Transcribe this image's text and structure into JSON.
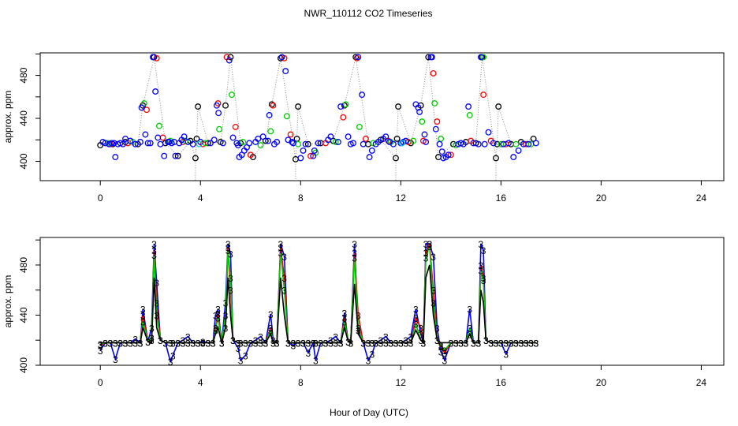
{
  "figure_title": "NWR_110112  CO2 Timeseries",
  "shared_xlabel": "Hour of Day (UTC)",
  "colors": {
    "black": "#000000",
    "red": "#ff0000",
    "green": "#00cd00",
    "blue": "#0000ff",
    "cyan": "#00cccc",
    "dotted": "#888888"
  },
  "chart_data": [
    {
      "type": "scatter",
      "title": "",
      "xlabel": "",
      "ylabel": "approx. ppm",
      "xlim": [
        -2.4,
        24.9
      ],
      "ylim": [
        382,
        501
      ],
      "xticks": [
        0,
        4,
        8,
        12,
        16,
        20,
        24
      ],
      "xtick_labels": [
        "0",
        "4",
        "8",
        "12",
        "16",
        "20",
        "24"
      ],
      "yticks": [
        400,
        440,
        480
      ],
      "ytick_labels": [
        "400",
        "440",
        "480"
      ],
      "marker": "open-circle",
      "grid": false,
      "series": [
        {
          "name": "black",
          "color": "#000000",
          "x": [
            0,
            0.5,
            1.0,
            1.5,
            1.7,
            2.15,
            2.6,
            3.1,
            3.6,
            3.8,
            3.85,
            3.9,
            4.3,
            4.8,
            5.0,
            5.2,
            5.6,
            6.1,
            6.6,
            6.85,
            7.2,
            7.8,
            7.85,
            7.9,
            8.3,
            8.8,
            9.3,
            9.75,
            10.2,
            10.7,
            11.2,
            11.8,
            11.85,
            11.9,
            12.4,
            12.8,
            13.1,
            13.5,
            14.1,
            14.6,
            15.0,
            15.25,
            15.8,
            15.85,
            15.9,
            16.4,
            16.8,
            17.3
          ],
          "y": [
            415,
            416,
            418,
            416,
            452,
            497,
            417,
            405,
            419,
            403,
            421,
            451,
            417,
            418,
            452,
            497,
            417,
            404,
            419,
            453,
            496,
            402,
            421,
            451,
            416,
            417,
            419,
            452,
            497,
            416,
            420,
            403,
            421,
            451,
            417,
            452,
            497,
            404,
            416,
            418,
            417,
            497,
            403,
            416,
            451,
            416,
            418,
            421
          ]
        },
        {
          "name": "red",
          "color": "#ff0000",
          "x": [
            0.4,
            1.1,
            1.85,
            2.25,
            2.5,
            3.3,
            4.1,
            4.7,
            5.05,
            5.4,
            6.0,
            6.9,
            7.35,
            7.6,
            8.4,
            9.0,
            9.7,
            10.25,
            10.6,
            11.5,
            12.3,
            12.9,
            13.3,
            13.45,
            14.0,
            14.8,
            15.3,
            15.6,
            16.2,
            17.0
          ],
          "y": [
            416,
            417,
            448,
            496,
            422,
            418,
            416,
            454,
            497,
            432,
            406,
            452,
            496,
            425,
            405,
            417,
            441,
            496,
            421,
            419,
            418,
            419,
            482,
            437,
            406,
            419,
            462,
            419,
            416,
            416
          ]
        },
        {
          "name": "green",
          "color": "#00cd00",
          "x": [
            0.3,
            1.3,
            1.75,
            2.35,
            2.8,
            3.4,
            4.2,
            4.75,
            5.25,
            5.7,
            6.4,
            6.8,
            7.45,
            7.9,
            8.6,
            9.4,
            9.8,
            10.35,
            10.9,
            11.6,
            12.5,
            12.85,
            13.35,
            13.6,
            14.2,
            14.75,
            15.3,
            16.0,
            16.6,
            17.2
          ],
          "y": [
            417,
            418,
            454,
            433,
            419,
            419,
            417,
            430,
            462,
            418,
            415,
            428,
            442,
            416,
            408,
            418,
            453,
            432,
            417,
            418,
            419,
            437,
            454,
            421,
            415,
            443,
            497,
            416,
            416,
            416
          ]
        },
        {
          "name": "blue",
          "color": "#0000ff",
          "x": [
            0.1,
            0.2,
            0.35,
            0.45,
            0.55,
            0.6,
            0.7,
            0.8,
            0.9,
            1.0,
            1.2,
            1.4,
            1.6,
            1.65,
            1.8,
            1.9,
            2.0,
            2.1,
            2.2,
            2.3,
            2.4,
            2.55,
            2.7,
            2.75,
            2.85,
            2.95,
            3.0,
            3.15,
            3.25,
            3.35,
            3.5,
            3.7,
            4.0,
            4.4,
            4.55,
            4.65,
            4.72,
            4.9,
            5.15,
            5.3,
            5.45,
            5.5,
            5.55,
            5.65,
            5.75,
            5.85,
            5.95,
            6.2,
            6.3,
            6.5,
            6.7,
            6.75,
            6.95,
            7.05,
            7.25,
            7.4,
            7.5,
            7.65,
            7.7,
            8.0,
            8.1,
            8.2,
            8.5,
            8.55,
            8.7,
            9.1,
            9.2,
            9.5,
            9.6,
            9.9,
            10.0,
            10.1,
            10.3,
            10.45,
            10.5,
            10.75,
            10.85,
            11.0,
            11.1,
            11.3,
            11.4,
            11.55,
            11.7,
            12.0,
            12.1,
            12.2,
            12.6,
            12.7,
            12.75,
            12.95,
            13.0,
            13.2,
            13.25,
            13.4,
            13.55,
            13.65,
            13.7,
            13.8,
            13.9,
            14.3,
            14.4,
            14.5,
            14.7,
            14.9,
            15.1,
            15.2,
            15.35,
            15.5,
            15.7,
            16.1,
            16.3,
            16.5,
            16.7,
            16.9,
            17.1,
            17.4
          ],
          "y": [
            418,
            417,
            416,
            417,
            417,
            404,
            416,
            417,
            416,
            421,
            419,
            416,
            418,
            450,
            425,
            417,
            417,
            497,
            465,
            422,
            416,
            405,
            418,
            418,
            417,
            418,
            405,
            417,
            420,
            423,
            418,
            416,
            418,
            417,
            420,
            452,
            445,
            417,
            494,
            422,
            417,
            415,
            404,
            406,
            410,
            413,
            417,
            418,
            421,
            423,
            419,
            443,
            416,
            418,
            497,
            484,
            420,
            418,
            417,
            403,
            410,
            416,
            405,
            410,
            417,
            420,
            423,
            418,
            451,
            423,
            416,
            417,
            497,
            462,
            416,
            404,
            410,
            416,
            418,
            421,
            423,
            418,
            416,
            417,
            418,
            419,
            453,
            450,
            446,
            425,
            418,
            497,
            497,
            430,
            416,
            409,
            403,
            404,
            406,
            416,
            417,
            416,
            451,
            417,
            416,
            497,
            416,
            427,
            417,
            416,
            417,
            404,
            410,
            416,
            416,
            417
          ]
        },
        {
          "name": "cyan",
          "color": "#00cccc",
          "x": [
            3.95,
            12.05
          ],
          "y": [
            416,
            417
          ]
        }
      ]
    },
    {
      "type": "line",
      "title": "",
      "xlabel": "Hour of Day (UTC)",
      "ylabel": "approx. ppm",
      "xlim": [
        -2.4,
        24.9
      ],
      "ylim": [
        400,
        502
      ],
      "xticks": [
        0,
        4,
        8,
        12,
        16,
        20,
        24
      ],
      "xtick_labels": [
        "0",
        "4",
        "8",
        "12",
        "16",
        "20",
        "24"
      ],
      "yticks": [
        400,
        440,
        480
      ],
      "ytick_labels": [
        "400",
        "440",
        "480"
      ],
      "point_label": "3",
      "grid": false,
      "x": [
        0,
        0.2,
        0.4,
        0.6,
        0.8,
        1.0,
        1.2,
        1.4,
        1.6,
        1.7,
        1.9,
        2.05,
        2.15,
        2.25,
        2.4,
        2.6,
        2.8,
        2.9,
        3.1,
        3.3,
        3.5,
        3.7,
        3.9,
        4.1,
        4.3,
        4.5,
        4.6,
        4.7,
        4.85,
        5.0,
        5.1,
        5.2,
        5.3,
        5.5,
        5.6,
        5.8,
        6.0,
        6.2,
        6.4,
        6.6,
        6.8,
        6.9,
        7.05,
        7.2,
        7.35,
        7.5,
        7.7,
        7.9,
        8.1,
        8.3,
        8.5,
        8.6,
        8.8,
        9.0,
        9.2,
        9.4,
        9.6,
        9.75,
        9.9,
        10.0,
        10.15,
        10.3,
        10.5,
        10.7,
        10.85,
        11.0,
        11.2,
        11.4,
        11.6,
        11.8,
        12.0,
        12.2,
        12.4,
        12.6,
        12.8,
        12.9,
        13.0,
        13.15,
        13.3,
        13.45,
        13.6,
        13.75,
        14.0,
        14.2,
        14.4,
        14.6,
        14.75,
        14.9,
        15.1,
        15.2,
        15.3,
        15.4,
        15.6,
        15.8,
        16.0,
        16.2,
        16.4,
        16.6,
        16.8,
        17.0,
        17.2,
        17.4
      ],
      "series": [
        {
          "name": "blue",
          "color": "#0000ff",
          "y": [
            412,
            418,
            418,
            405,
            418,
            418,
            418,
            421,
            418,
            445,
            419,
            430,
            497,
            466,
            420,
            418,
            403,
            408,
            418,
            420,
            423,
            418,
            418,
            419,
            418,
            418,
            440,
            445,
            418,
            450,
            497,
            489,
            420,
            414,
            404,
            408,
            418,
            420,
            423,
            418,
            441,
            420,
            418,
            497,
            487,
            418,
            416,
            418,
            418,
            410,
            418,
            404,
            418,
            418,
            420,
            423,
            418,
            442,
            419,
            418,
            497,
            428,
            418,
            404,
            409,
            418,
            420,
            423,
            418,
            418,
            418,
            420,
            423,
            445,
            425,
            418,
            497,
            497,
            487,
            430,
            411,
            404,
            418,
            418,
            418,
            418,
            445,
            418,
            418,
            497,
            492,
            420,
            418,
            418,
            418,
            409,
            418,
            418,
            418,
            418,
            418,
            418
          ]
        },
        {
          "name": "red",
          "color": "#ff0000",
          "y": [
            416,
            418,
            418,
            418,
            418,
            418,
            418,
            418,
            418,
            440,
            419,
            420,
            492,
            450,
            420,
            418,
            418,
            418,
            418,
            418,
            418,
            418,
            418,
            418,
            418,
            418,
            430,
            441,
            418,
            430,
            494,
            460,
            420,
            418,
            418,
            418,
            418,
            418,
            418,
            418,
            430,
            418,
            418,
            494,
            470,
            418,
            418,
            418,
            418,
            418,
            418,
            418,
            418,
            418,
            418,
            418,
            418,
            438,
            419,
            418,
            490,
            440,
            418,
            418,
            418,
            418,
            418,
            418,
            418,
            418,
            418,
            418,
            418,
            438,
            430,
            418,
            490,
            497,
            460,
            420,
            415,
            410,
            418,
            418,
            418,
            418,
            425,
            418,
            418,
            480,
            470,
            420,
            418,
            418,
            418,
            418,
            418,
            418,
            418,
            418,
            418,
            418
          ]
        },
        {
          "name": "green",
          "color": "#00cd00",
          "y": [
            417,
            418,
            418,
            418,
            418,
            418,
            418,
            418,
            418,
            435,
            419,
            422,
            488,
            440,
            420,
            418,
            418,
            418,
            418,
            418,
            418,
            418,
            418,
            418,
            418,
            418,
            428,
            438,
            418,
            440,
            492,
            470,
            420,
            418,
            418,
            418,
            418,
            418,
            418,
            418,
            428,
            418,
            418,
            490,
            460,
            418,
            418,
            418,
            418,
            418,
            418,
            418,
            418,
            418,
            418,
            418,
            418,
            435,
            419,
            418,
            486,
            430,
            418,
            418,
            418,
            418,
            418,
            418,
            418,
            418,
            418,
            418,
            418,
            433,
            420,
            418,
            486,
            495,
            450,
            420,
            416,
            412,
            418,
            418,
            418,
            418,
            430,
            418,
            418,
            476,
            468,
            420,
            418,
            418,
            418,
            418,
            418,
            418,
            418,
            418,
            418,
            418
          ]
        },
        {
          "name": "black",
          "color": "#000000",
          "y": [
            418,
            418,
            418,
            418,
            418,
            418,
            418,
            418,
            418,
            430,
            419,
            418,
            470,
            430,
            420,
            418,
            418,
            418,
            418,
            418,
            418,
            418,
            418,
            418,
            418,
            418,
            425,
            430,
            418,
            430,
            470,
            440,
            420,
            418,
            418,
            418,
            418,
            418,
            418,
            418,
            425,
            418,
            418,
            470,
            440,
            418,
            418,
            418,
            418,
            418,
            418,
            418,
            418,
            418,
            418,
            418,
            418,
            430,
            419,
            418,
            465,
            425,
            418,
            418,
            418,
            418,
            418,
            418,
            418,
            418,
            418,
            418,
            418,
            428,
            420,
            418,
            470,
            480,
            440,
            420,
            418,
            418,
            418,
            418,
            418,
            418,
            425,
            418,
            418,
            460,
            450,
            420,
            418,
            418,
            418,
            418,
            418,
            418,
            418,
            418,
            418,
            418
          ]
        }
      ]
    }
  ]
}
